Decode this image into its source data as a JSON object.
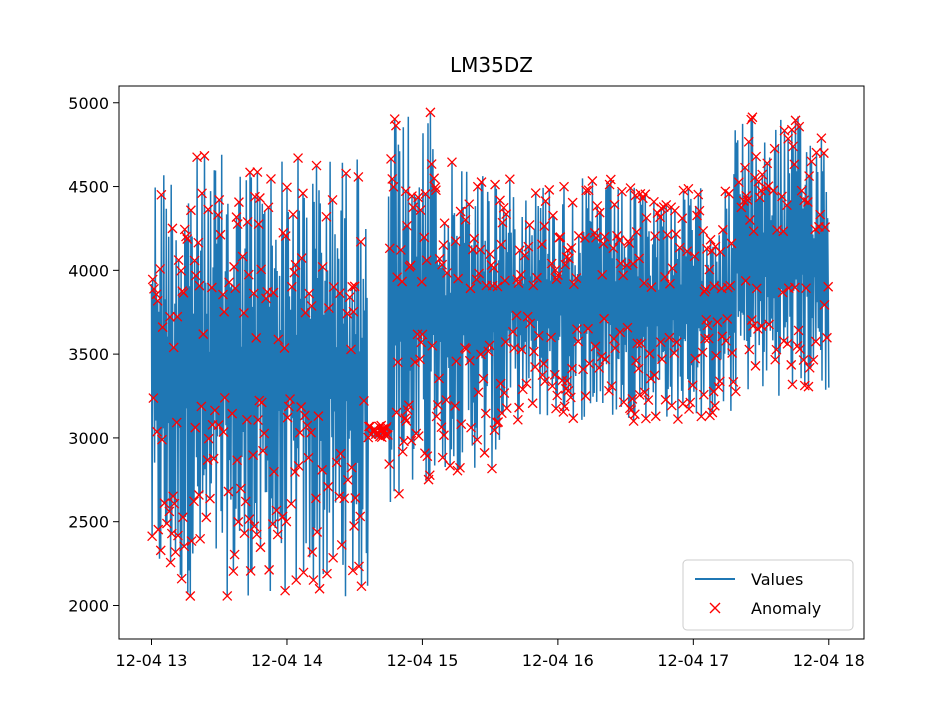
{
  "chart_data": {
    "type": "line",
    "title": "LM35DZ",
    "xlabel": "",
    "ylabel": "",
    "x_ticks": [
      "12-04 13",
      "12-04 14",
      "12-04 15",
      "12-04 16",
      "12-04 17",
      "12-04 18"
    ],
    "x_tick_hours": [
      13,
      14,
      15,
      16,
      17,
      18
    ],
    "xlim_hours": [
      12.76,
      18.26
    ],
    "y_ticks": [
      2000,
      2500,
      3000,
      3500,
      4000,
      4500,
      5000
    ],
    "ylim": [
      1800,
      5100
    ],
    "grid": false,
    "legend": {
      "position": "bottom-right",
      "entries": [
        {
          "label": "Values",
          "marker": "line",
          "color": "#1f77b4"
        },
        {
          "label": "Anomaly",
          "marker": "x",
          "color": "#ff0000"
        }
      ]
    },
    "series": [
      {
        "name": "Values",
        "color": "#1f77b4",
        "description": "Highly oscillating sensor readings from 12-04 13:00 to 12-04 18:00",
        "segments": [
          {
            "x_start": 13.0,
            "x_end": 14.6,
            "low": 2050,
            "high": 4700
          },
          {
            "x_start": 14.6,
            "x_end": 14.75,
            "low": 3000,
            "high": 3080
          },
          {
            "x_start": 14.75,
            "x_end": 15.1,
            "low": 2600,
            "high": 4950
          },
          {
            "x_start": 15.1,
            "x_end": 15.6,
            "low": 2800,
            "high": 4650
          },
          {
            "x_start": 15.6,
            "x_end": 16.4,
            "low": 3100,
            "high": 4550
          },
          {
            "x_start": 16.4,
            "x_end": 17.3,
            "low": 3100,
            "high": 4500
          },
          {
            "x_start": 17.3,
            "x_end": 18.0,
            "low": 3250,
            "high": 4920
          }
        ]
      },
      {
        "name": "Anomaly",
        "color": "#ff0000",
        "marker": "x"
      }
    ]
  }
}
